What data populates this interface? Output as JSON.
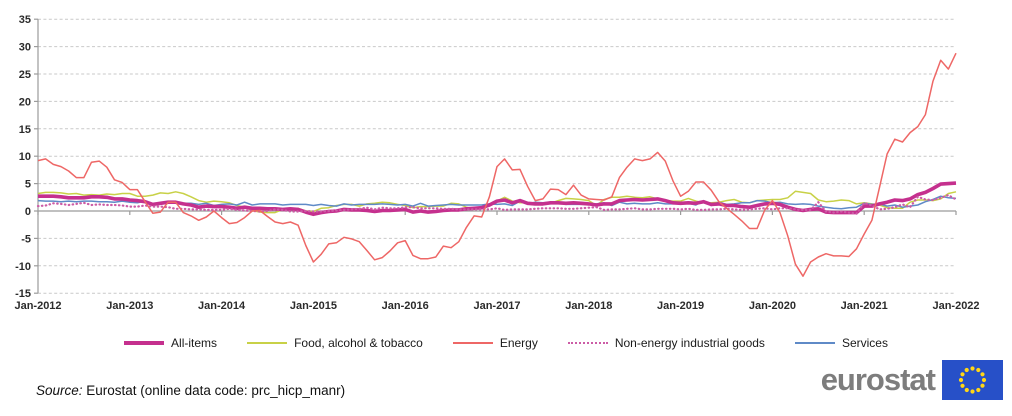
{
  "chart_data": {
    "type": "line",
    "title": "",
    "xlabel": "",
    "ylabel": "",
    "ylim": [
      -15,
      35
    ],
    "y_ticks": [
      35,
      30,
      25,
      20,
      15,
      10,
      5,
      0,
      -5,
      -10,
      -15
    ],
    "x_tick_labels": [
      "Jan-2012",
      "Jan-2013",
      "Jan-2014",
      "Jan-2015",
      "Jan-2016",
      "Jan-2017",
      "Jan-2018",
      "Jan-2019",
      "Jan-2020",
      "Jan-2021",
      "Jan-2022"
    ],
    "months_per_tick": 12,
    "n_points": 121,
    "grid": "horizontal dashed, solid zero line",
    "legend_position": "bottom",
    "series": [
      {
        "name": "All-items",
        "color": "#c5308e",
        "style": "solid-thick",
        "values": [
          2.7,
          2.7,
          2.7,
          2.6,
          2.4,
          2.4,
          2.4,
          2.6,
          2.6,
          2.5,
          2.2,
          2.2,
          2.0,
          1.9,
          1.7,
          1.2,
          1.4,
          1.6,
          1.6,
          1.3,
          1.1,
          0.7,
          0.9,
          0.8,
          0.8,
          0.7,
          0.5,
          0.7,
          0.5,
          0.5,
          0.4,
          0.4,
          0.3,
          0.4,
          0.3,
          -0.2,
          -0.6,
          -0.3,
          -0.1,
          0.0,
          0.3,
          0.2,
          0.2,
          0.1,
          -0.1,
          0.1,
          0.1,
          0.2,
          0.3,
          -0.2,
          0.0,
          -0.2,
          -0.1,
          0.1,
          0.2,
          0.2,
          0.4,
          0.5,
          0.6,
          1.1,
          1.8,
          2.0,
          1.5,
          1.9,
          1.4,
          1.3,
          1.3,
          1.5,
          1.5,
          1.4,
          1.5,
          1.4,
          1.3,
          1.1,
          1.3,
          1.3,
          1.9,
          2.0,
          2.1,
          2.0,
          2.1,
          2.2,
          1.9,
          1.5,
          1.4,
          1.5,
          1.4,
          1.7,
          1.2,
          1.3,
          1.0,
          1.0,
          0.8,
          0.7,
          1.0,
          1.3,
          1.4,
          1.2,
          0.7,
          0.3,
          0.1,
          0.3,
          0.4,
          -0.2,
          -0.3,
          -0.3,
          -0.3,
          -0.3,
          0.9,
          0.9,
          1.3,
          1.6,
          2.0,
          1.9,
          2.2,
          3.0,
          3.4,
          4.1,
          4.9,
          5.0,
          5.1
        ]
      },
      {
        "name": "Food, alcohol & tobacco",
        "color": "#c8d147",
        "style": "solid",
        "values": [
          3.2,
          3.4,
          3.4,
          3.3,
          3.1,
          3.2,
          2.9,
          3.0,
          2.9,
          3.1,
          3.0,
          3.2,
          3.2,
          2.7,
          2.7,
          2.9,
          3.3,
          3.2,
          3.5,
          3.2,
          2.6,
          1.9,
          1.6,
          1.8,
          1.7,
          1.5,
          1.0,
          0.7,
          0.1,
          -0.2,
          -0.3,
          -0.3,
          0.3,
          0.5,
          0.5,
          0.0,
          -0.1,
          0.5,
          0.6,
          1.0,
          1.2,
          1.2,
          0.9,
          1.3,
          1.4,
          1.6,
          1.5,
          1.2,
          1.0,
          0.6,
          0.8,
          0.8,
          0.9,
          0.9,
          1.4,
          1.3,
          0.7,
          0.4,
          0.7,
          1.2,
          1.8,
          2.5,
          1.8,
          1.5,
          1.5,
          1.4,
          1.4,
          1.4,
          1.9,
          2.3,
          2.2,
          2.1,
          1.9,
          1.0,
          2.1,
          2.5,
          2.5,
          2.7,
          2.5,
          2.4,
          2.6,
          2.2,
          1.9,
          1.8,
          1.8,
          2.3,
          1.8,
          1.5,
          1.5,
          1.6,
          1.9,
          2.1,
          1.6,
          1.5,
          1.9,
          2.0,
          2.1,
          2.1,
          2.4,
          3.6,
          3.4,
          3.2,
          2.0,
          1.7,
          1.8,
          2.0,
          1.9,
          1.3,
          1.5,
          1.3,
          1.1,
          0.6,
          0.5,
          0.5,
          1.6,
          2.0,
          2.0,
          1.9,
          2.2,
          3.2,
          3.5
        ]
      },
      {
        "name": "Energy",
        "color": "#ee6766",
        "style": "solid",
        "values": [
          9.2,
          9.5,
          8.5,
          8.1,
          7.3,
          6.1,
          6.1,
          8.9,
          9.1,
          8.0,
          5.7,
          5.2,
          3.9,
          3.9,
          1.7,
          -0.4,
          -0.2,
          1.6,
          1.6,
          -0.3,
          -0.9,
          -1.7,
          -1.1,
          0.0,
          -1.2,
          -2.3,
          -2.1,
          -1.2,
          0.0,
          0.1,
          -1.0,
          -2.0,
          -2.3,
          -2.0,
          -2.6,
          -6.3,
          -9.3,
          -7.9,
          -6.0,
          -5.8,
          -4.8,
          -5.1,
          -5.6,
          -7.2,
          -8.9,
          -8.5,
          -7.3,
          -5.8,
          -5.4,
          -8.1,
          -8.7,
          -8.7,
          -8.4,
          -6.4,
          -6.7,
          -5.6,
          -3.0,
          -0.9,
          -1.1,
          2.6,
          8.1,
          9.5,
          7.5,
          7.6,
          4.5,
          1.9,
          2.2,
          4.0,
          3.9,
          3.0,
          4.7,
          2.9,
          2.2,
          2.1,
          2.0,
          2.6,
          6.1,
          8.0,
          9.5,
          9.2,
          9.5,
          10.7,
          9.1,
          5.5,
          2.7,
          3.6,
          5.3,
          5.3,
          3.8,
          1.7,
          0.5,
          -0.6,
          -1.8,
          -3.2,
          -3.2,
          0.2,
          1.9,
          -0.3,
          -4.5,
          -9.7,
          -11.9,
          -9.3,
          -8.4,
          -7.8,
          -8.2,
          -8.2,
          -8.3,
          -6.9,
          -4.2,
          -1.7,
          4.3,
          10.4,
          13.1,
          12.6,
          14.3,
          15.4,
          17.6,
          23.7,
          27.5,
          25.9,
          28.8
        ]
      },
      {
        "name": "Non-energy industrial goods",
        "color": "#cc5ca6",
        "style": "dotted",
        "values": [
          0.9,
          1.0,
          1.4,
          1.3,
          1.1,
          1.3,
          1.5,
          1.1,
          1.2,
          1.1,
          1.1,
          1.0,
          0.8,
          0.8,
          1.0,
          0.8,
          0.8,
          0.7,
          0.4,
          0.4,
          0.3,
          0.3,
          0.2,
          0.2,
          0.2,
          0.4,
          0.2,
          0.1,
          0.0,
          -0.1,
          0.0,
          0.3,
          0.2,
          -0.1,
          -0.1,
          0.0,
          -0.1,
          -0.1,
          0.0,
          0.1,
          0.2,
          0.3,
          0.4,
          0.6,
          0.3,
          0.6,
          0.5,
          0.5,
          0.7,
          0.7,
          0.5,
          0.5,
          0.5,
          0.4,
          0.4,
          0.3,
          0.3,
          0.3,
          0.3,
          0.3,
          0.5,
          0.2,
          0.3,
          0.3,
          0.3,
          0.4,
          0.5,
          0.5,
          0.5,
          0.4,
          0.4,
          0.5,
          0.6,
          0.7,
          0.2,
          0.3,
          0.3,
          0.4,
          0.5,
          0.3,
          0.3,
          0.4,
          0.4,
          0.4,
          0.3,
          0.4,
          0.2,
          0.2,
          0.3,
          0.3,
          0.4,
          0.3,
          0.2,
          0.3,
          0.4,
          0.5,
          0.3,
          0.5,
          0.5,
          0.3,
          0.2,
          0.2,
          1.6,
          -0.1,
          -0.3,
          -0.1,
          -0.3,
          -0.5,
          1.5,
          1.0,
          0.3,
          0.4,
          0.7,
          1.2,
          0.7,
          2.6,
          2.1,
          2.0,
          2.4,
          2.9,
          2.1
        ]
      },
      {
        "name": "Services",
        "color": "#5f8ac7",
        "style": "solid",
        "values": [
          1.9,
          1.8,
          1.8,
          1.7,
          1.8,
          1.7,
          1.8,
          1.8,
          1.7,
          1.7,
          1.6,
          1.8,
          1.6,
          1.5,
          1.8,
          1.1,
          1.5,
          1.4,
          1.4,
          1.4,
          1.4,
          1.2,
          1.4,
          1.0,
          1.2,
          1.3,
          1.1,
          1.6,
          1.1,
          1.3,
          1.3,
          1.3,
          1.1,
          1.2,
          1.2,
          1.2,
          1.0,
          1.2,
          1.0,
          0.9,
          1.3,
          1.1,
          1.2,
          1.2,
          1.2,
          1.3,
          1.2,
          1.1,
          1.2,
          0.9,
          1.4,
          0.9,
          1.0,
          1.1,
          1.2,
          1.1,
          1.1,
          1.1,
          1.1,
          1.3,
          1.2,
          1.3,
          1.0,
          1.8,
          1.3,
          1.6,
          1.5,
          1.6,
          1.5,
          1.2,
          1.2,
          1.2,
          1.2,
          1.3,
          1.5,
          1.0,
          1.6,
          1.3,
          1.4,
          1.3,
          1.3,
          1.5,
          1.3,
          1.3,
          1.6,
          1.4,
          1.1,
          1.9,
          1.0,
          1.6,
          1.2,
          1.3,
          1.5,
          1.5,
          1.9,
          1.8,
          1.5,
          1.6,
          1.3,
          1.2,
          1.3,
          1.2,
          0.9,
          0.7,
          0.5,
          0.4,
          0.6,
          0.7,
          1.4,
          1.2,
          1.3,
          0.9,
          1.1,
          0.7,
          0.9,
          1.1,
          1.7,
          2.1,
          2.7,
          2.4,
          2.3
        ]
      }
    ],
    "draw_order": [
      1,
      4,
      0,
      3,
      2
    ]
  },
  "axis": {
    "grid_color": "#c9c9c9",
    "axis_color": "#9b9b9b",
    "label_color": "#2b2b2b"
  },
  "source": {
    "prefix": "Source:",
    "text": " Eurostat (online data code: prc_hicp_manr)"
  },
  "logo": {
    "text": "eurostat",
    "flag_blue": "#2750c8",
    "star_yellow": "#ffd617"
  }
}
